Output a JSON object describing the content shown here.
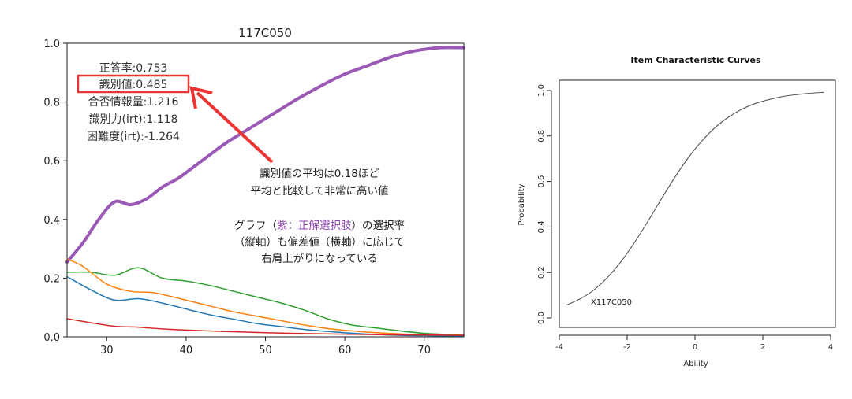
{
  "chart_data": [
    {
      "type": "line",
      "title": "117C050",
      "xlim": [
        25,
        75
      ],
      "ylim": [
        0.0,
        1.0
      ],
      "x_ticks": [
        30,
        40,
        50,
        60,
        70
      ],
      "x_tick_labels": [
        "30",
        "40",
        "50",
        "60",
        "70"
      ],
      "y_ticks": [
        0.0,
        0.2,
        0.4,
        0.6,
        0.8,
        1.0
      ],
      "y_tick_labels": [
        "0.0",
        "0.2",
        "0.4",
        "0.6",
        "0.8",
        "1.0"
      ],
      "stats": [
        "正答率:0.753",
        "識別値:0.485",
        "合否情報量:1.216",
        "識別力(irt):1.118",
        "困難度(irt):-1.264"
      ],
      "annotation": {
        "line1": "識別値の平均は0.18ほど",
        "line2": "平均と比較して非常に高い値",
        "line3_pre": "グラフ（",
        "line3_purple": "紫：正解選択肢",
        "line3_post": "）の選択率",
        "line4": "（縦軸）も偏差値（横軸）に応じて",
        "line5": "右肩上がりになっている"
      },
      "series": [
        {
          "color": "#9b59b6",
          "width": 4,
          "x": [
            25,
            27,
            29,
            31,
            33,
            35,
            37,
            39,
            41,
            43,
            45,
            48,
            51,
            54,
            57,
            60,
            63,
            66,
            69,
            72,
            75
          ],
          "y": [
            0.255,
            0.32,
            0.4,
            0.46,
            0.45,
            0.47,
            0.51,
            0.54,
            0.58,
            0.62,
            0.66,
            0.71,
            0.76,
            0.81,
            0.855,
            0.895,
            0.925,
            0.955,
            0.975,
            0.985,
            0.985
          ]
        },
        {
          "color": "#2ca02c",
          "width": 1.5,
          "x": [
            25,
            28,
            31,
            34,
            37,
            40,
            43,
            46,
            49,
            52,
            55,
            58,
            61,
            64,
            67,
            70,
            73,
            75
          ],
          "y": [
            0.22,
            0.22,
            0.21,
            0.235,
            0.2,
            0.19,
            0.175,
            0.155,
            0.135,
            0.115,
            0.09,
            0.06,
            0.04,
            0.03,
            0.02,
            0.012,
            0.008,
            0.007
          ]
        },
        {
          "color": "#ff7f0e",
          "width": 1.5,
          "x": [
            25,
            27,
            30,
            33,
            36,
            40,
            43,
            46,
            49,
            52,
            55,
            58,
            61,
            64,
            67,
            70,
            73,
            75
          ],
          "y": [
            0.265,
            0.24,
            0.18,
            0.155,
            0.15,
            0.125,
            0.105,
            0.085,
            0.07,
            0.055,
            0.04,
            0.028,
            0.02,
            0.014,
            0.01,
            0.007,
            0.005,
            0.005
          ]
        },
        {
          "color": "#1f77b4",
          "width": 1.5,
          "x": [
            25,
            28,
            31,
            34,
            37,
            40,
            43,
            46,
            49,
            52,
            55,
            58,
            61,
            64,
            67,
            70,
            73,
            75
          ],
          "y": [
            0.205,
            0.16,
            0.125,
            0.13,
            0.115,
            0.095,
            0.075,
            0.06,
            0.045,
            0.035,
            0.025,
            0.018,
            0.012,
            0.008,
            0.005,
            0.004,
            0.003,
            0.003
          ]
        },
        {
          "color": "#d62728",
          "width": 1.5,
          "x": [
            25,
            28,
            31,
            34,
            37,
            40,
            45,
            50,
            55,
            60,
            65,
            70,
            75
          ],
          "y": [
            0.062,
            0.048,
            0.036,
            0.033,
            0.027,
            0.023,
            0.018,
            0.014,
            0.011,
            0.009,
            0.007,
            0.006,
            0.005
          ]
        }
      ]
    },
    {
      "type": "line",
      "title": "Item Characteristic Curves",
      "xlabel": "Ability",
      "ylabel": "Probability",
      "xlim": [
        -4,
        4
      ],
      "ylim": [
        0.0,
        1.0
      ],
      "x_ticks": [
        -4,
        -2,
        0,
        2,
        4
      ],
      "x_tick_labels": [
        "-4",
        "-2",
        "0",
        "2",
        "4"
      ],
      "y_ticks": [
        0.0,
        0.2,
        0.4,
        0.6,
        0.8,
        1.0
      ],
      "y_tick_labels": [
        "0.0",
        "0.2",
        "0.4",
        "0.6",
        "0.8",
        "1.0"
      ],
      "curve_label": "X117C050",
      "series": [
        {
          "color": "#555555",
          "x": [
            -3.8,
            -3.4,
            -3.0,
            -2.6,
            -2.2,
            -1.8,
            -1.4,
            -1.0,
            -0.6,
            -0.2,
            0.2,
            0.6,
            1.0,
            1.4,
            1.8,
            2.2,
            2.6,
            3.0,
            3.4,
            3.8
          ],
          "y": [
            0.056,
            0.083,
            0.121,
            0.175,
            0.244,
            0.328,
            0.422,
            0.521,
            0.617,
            0.704,
            0.778,
            0.838,
            0.884,
            0.919,
            0.944,
            0.961,
            0.974,
            0.982,
            0.988,
            0.992
          ]
        }
      ]
    }
  ]
}
